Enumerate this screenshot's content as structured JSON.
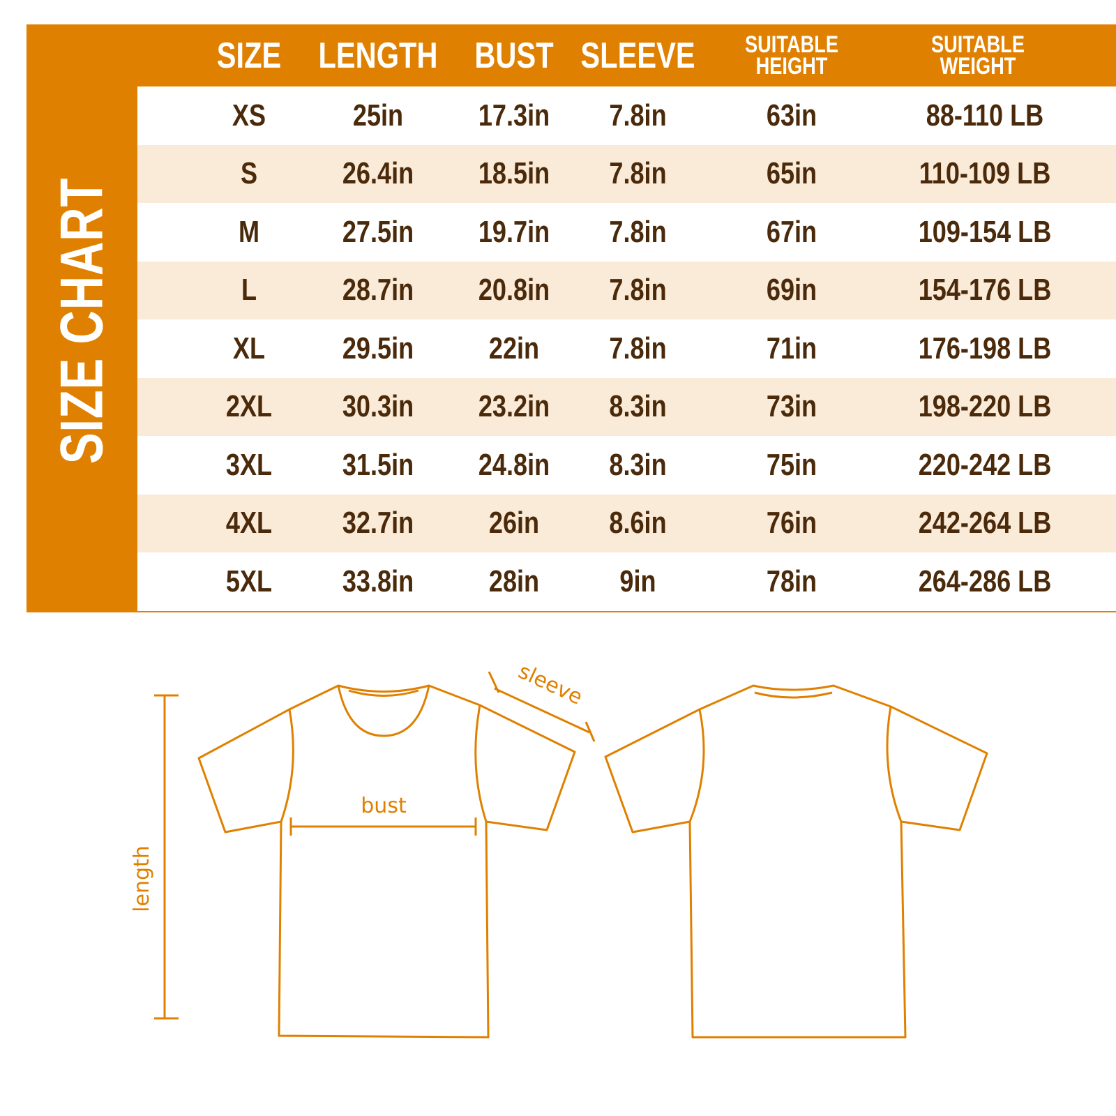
{
  "title": "SIZE CHART",
  "columns": [
    "SIZE",
    "LENGTH",
    "BUST",
    "SLEEVE",
    "SUITABLE HEIGHT",
    "SUITABLE WEIGHT"
  ],
  "rows": [
    [
      "XS",
      "25in",
      "17.3in",
      "7.8in",
      "63in",
      "88-110 LB"
    ],
    [
      "S",
      "26.4in",
      "18.5in",
      "7.8in",
      "65in",
      "110-109 LB"
    ],
    [
      "M",
      "27.5in",
      "19.7in",
      "7.8in",
      "67in",
      "109-154 LB"
    ],
    [
      "L",
      "28.7in",
      "20.8in",
      "7.8in",
      "69in",
      "154-176 LB"
    ],
    [
      "XL",
      "29.5in",
      "22in",
      "7.8in",
      "71in",
      "176-198 LB"
    ],
    [
      "2XL",
      "30.3in",
      "23.2in",
      "8.3in",
      "73in",
      "198-220 LB"
    ],
    [
      "3XL",
      "31.5in",
      "24.8in",
      "8.3in",
      "75in",
      "220-242 LB"
    ],
    [
      "4XL",
      "32.7in",
      "26in",
      "8.6in",
      "76in",
      "242-264 LB"
    ],
    [
      "5XL",
      "33.8in",
      "28in",
      "9in",
      "78in",
      "264-286 LB"
    ]
  ],
  "diagram": {
    "bust": "bust",
    "sleeve": "sleeve",
    "length": "length"
  },
  "colors": {
    "accent": "#E08000",
    "stripe": "#FAEAD8",
    "text": "#4A2A0A"
  }
}
